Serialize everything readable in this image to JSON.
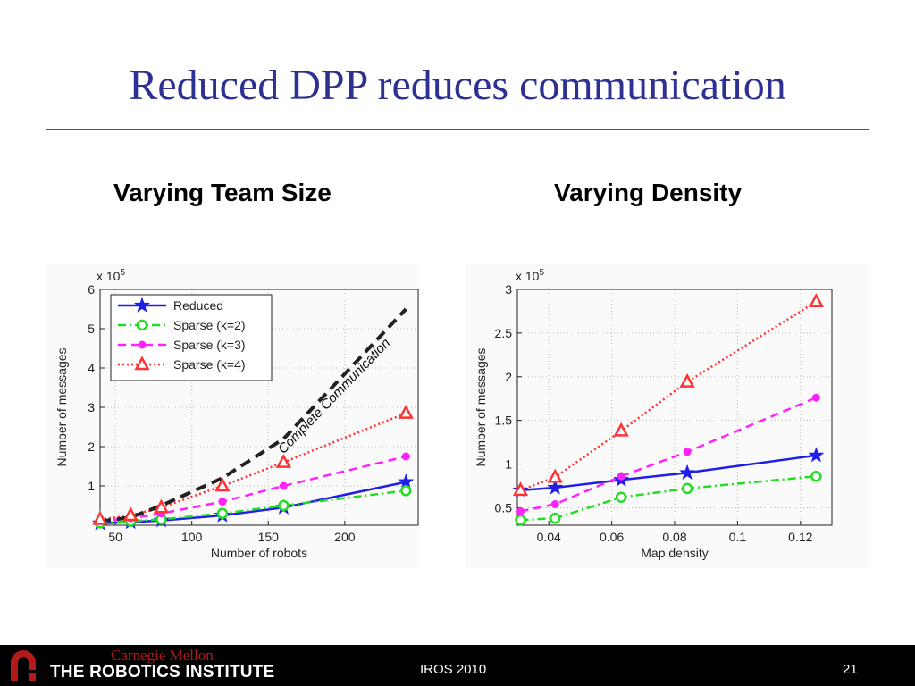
{
  "slide": {
    "title": "Reduced DPP reduces communication",
    "subtitle_left": "Varying Team Size",
    "subtitle_right": "Varying Density"
  },
  "footer": {
    "cmu": "Carnegie Mellon",
    "institute": "THE ROBOTICS INSTITUTE",
    "conference": "IROS 2010",
    "page": "21"
  },
  "colors": {
    "title": "#2e3192",
    "reduced": "#1f1fe6",
    "sparse2": "#22dd22",
    "sparse3": "#ff22ff",
    "sparse4": "#ff3333",
    "complete": "#222222"
  },
  "chart_data": [
    {
      "type": "line",
      "xlabel": "Number of robots",
      "ylabel": "Number of messages",
      "y_multiplier": "x 10",
      "y_exponent": "5",
      "xlim": [
        40,
        248
      ],
      "ylim": [
        0,
        6
      ],
      "xticks": [
        50,
        100,
        150,
        200
      ],
      "yticks": [
        1,
        2,
        3,
        4,
        5,
        6
      ],
      "grid": true,
      "legend_position": "top-left",
      "annotation": "Complete Communication",
      "series": [
        {
          "name": "Reduced",
          "style": "solid",
          "marker": "star",
          "color_key": "reduced",
          "x": [
            40,
            60,
            80,
            120,
            160,
            240
          ],
          "y": [
            0.05,
            0.08,
            0.12,
            0.25,
            0.45,
            1.1
          ]
        },
        {
          "name": "Sparse (k=2)",
          "style": "dashdot",
          "marker": "circle",
          "color_key": "sparse2",
          "x": [
            40,
            60,
            80,
            120,
            160,
            240
          ],
          "y": [
            0.06,
            0.1,
            0.15,
            0.3,
            0.5,
            0.88
          ]
        },
        {
          "name": "Sparse (k=3)",
          "style": "dashed",
          "marker": "dot",
          "color_key": "sparse3",
          "x": [
            40,
            60,
            80,
            120,
            160,
            240
          ],
          "y": [
            0.1,
            0.18,
            0.3,
            0.6,
            1.0,
            1.75
          ]
        },
        {
          "name": "Sparse (k=4)",
          "style": "dotted",
          "marker": "triangle",
          "color_key": "sparse4",
          "x": [
            40,
            60,
            80,
            120,
            160,
            240
          ],
          "y": [
            0.15,
            0.25,
            0.45,
            1.0,
            1.6,
            2.85
          ]
        },
        {
          "name": "",
          "style": "bolddash",
          "marker": "none",
          "color_key": "complete",
          "x": [
            40,
            60,
            80,
            120,
            160,
            240
          ],
          "y": [
            0.1,
            0.2,
            0.5,
            1.2,
            2.2,
            5.5
          ]
        }
      ]
    },
    {
      "type": "line",
      "xlabel": "Map density",
      "ylabel": "Number of messages",
      "y_multiplier": "x 10",
      "y_exponent": "5",
      "xlim": [
        0.03,
        0.13
      ],
      "ylim": [
        0.3,
        3
      ],
      "xticks": [
        0.04,
        0.06,
        0.08,
        0.1,
        0.12
      ],
      "yticks": [
        0.5,
        1,
        1.5,
        2,
        2.5,
        3
      ],
      "grid": true,
      "series": [
        {
          "name": "Reduced",
          "style": "solid",
          "marker": "star",
          "color_key": "reduced",
          "x": [
            0.031,
            0.042,
            0.063,
            0.084,
            0.125
          ],
          "y": [
            0.7,
            0.73,
            0.82,
            0.9,
            1.1
          ]
        },
        {
          "name": "Sparse (k=2)",
          "style": "dashdot",
          "marker": "circle",
          "color_key": "sparse2",
          "x": [
            0.031,
            0.042,
            0.063,
            0.084,
            0.125
          ],
          "y": [
            0.36,
            0.38,
            0.62,
            0.72,
            0.86
          ]
        },
        {
          "name": "Sparse (k=3)",
          "style": "dashed",
          "marker": "dot",
          "color_key": "sparse3",
          "x": [
            0.031,
            0.042,
            0.063,
            0.084,
            0.125
          ],
          "y": [
            0.46,
            0.54,
            0.86,
            1.14,
            1.76
          ]
        },
        {
          "name": "Sparse (k=4)",
          "style": "dotted",
          "marker": "triangle",
          "color_key": "sparse4",
          "x": [
            0.031,
            0.042,
            0.063,
            0.084,
            0.125
          ],
          "y": [
            0.7,
            0.85,
            1.38,
            1.94,
            2.86
          ]
        }
      ]
    }
  ]
}
